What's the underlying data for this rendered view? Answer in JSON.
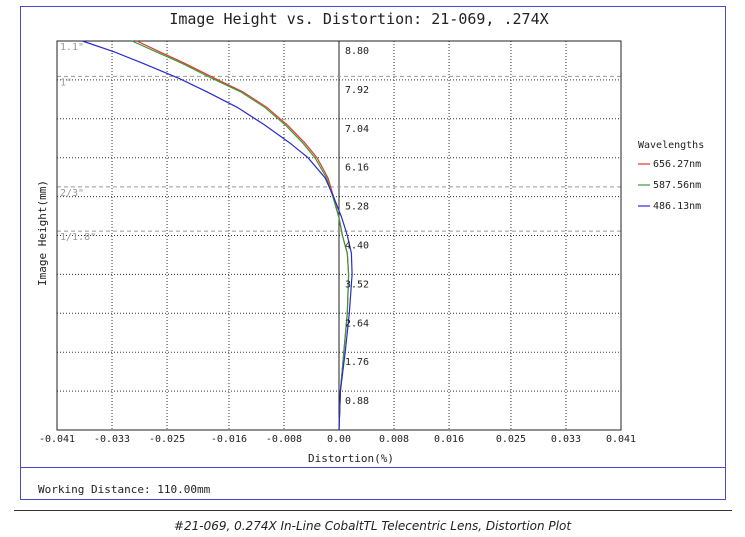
{
  "caption": "#21-069, 0.274X In-Line CobaltTL Telecentric Lens, Distortion Plot",
  "working_distance": "Working Distance: 110.00mm",
  "chart_data": {
    "type": "line",
    "title": "Image Height vs. Distortion: 21-069, .274X",
    "xlabel": "Distortion(%)",
    "ylabel": "Image Height(mm)",
    "xlim": [
      -0.041,
      0.041
    ],
    "ylim": [
      0,
      8.8
    ],
    "x_ticks": [
      "-0.041",
      "-0.033",
      "-0.025",
      "-0.016",
      "-0.008",
      "0.00",
      "0.008",
      "0.016",
      "0.025",
      "0.033",
      "0.041"
    ],
    "x_tick_values": [
      -0.041,
      -0.033,
      -0.025,
      -0.016,
      -0.008,
      0.0,
      0.008,
      0.016,
      0.025,
      0.033,
      0.041
    ],
    "y_ticks": [
      "0.88",
      "1.76",
      "2.64",
      "3.52",
      "4.40",
      "5.28",
      "6.16",
      "7.04",
      "7.92",
      "8.80"
    ],
    "y_tick_values": [
      0.88,
      1.76,
      2.64,
      3.52,
      4.4,
      5.28,
      6.16,
      7.04,
      7.92,
      8.8
    ],
    "grid": true,
    "legend_title": "Wavelengths",
    "legend_position": "right",
    "sensor_lines": [
      {
        "label": "1.1\"",
        "y": 8.8
      },
      {
        "label": "1\"",
        "y": 8.0
      },
      {
        "label": "2/3\"",
        "y": 5.5
      },
      {
        "label": "1/1.8\"",
        "y": 4.5
      }
    ],
    "series": [
      {
        "name": "656.27nm",
        "color": "#e03a2a",
        "x": [
          0.0,
          0.0002,
          0.0007,
          0.0012,
          0.0014,
          0.0012,
          0.0005,
          0.0,
          -0.0008,
          -0.0016,
          -0.0032,
          -0.005,
          -0.0075,
          -0.0105,
          -0.014,
          -0.018,
          -0.0225,
          -0.026,
          -0.0294
        ],
        "y": [
          0.0,
          0.88,
          1.76,
          2.64,
          3.52,
          4.0,
          4.4,
          4.8,
          5.28,
          5.7,
          6.16,
          6.5,
          6.9,
          7.3,
          7.65,
          7.95,
          8.3,
          8.55,
          8.8
        ]
      },
      {
        "name": "587.56nm",
        "color": "#3a9a3a",
        "x": [
          0.0,
          0.0002,
          0.0007,
          0.0012,
          0.0014,
          0.0012,
          0.0005,
          0.0,
          -0.0009,
          -0.0018,
          -0.0035,
          -0.0053,
          -0.0078,
          -0.0108,
          -0.0143,
          -0.0184,
          -0.0229,
          -0.0265,
          -0.0301
        ],
        "y": [
          0.0,
          0.88,
          1.76,
          2.64,
          3.52,
          4.0,
          4.4,
          4.8,
          5.28,
          5.7,
          6.16,
          6.5,
          6.9,
          7.3,
          7.65,
          7.95,
          8.3,
          8.55,
          8.8
        ]
      },
      {
        "name": "486.13nm",
        "color": "#2a2ad0",
        "x": [
          0.0,
          0.0002,
          0.0009,
          0.0015,
          0.0019,
          0.0018,
          0.0012,
          0.0004,
          -0.0008,
          -0.002,
          -0.0045,
          -0.0072,
          -0.0108,
          -0.0148,
          -0.0192,
          -0.0232,
          -0.0286,
          -0.0326,
          -0.0373
        ],
        "y": [
          0.0,
          0.88,
          1.76,
          2.64,
          3.52,
          4.0,
          4.4,
          4.8,
          5.28,
          5.7,
          6.16,
          6.5,
          6.9,
          7.3,
          7.65,
          7.95,
          8.3,
          8.55,
          8.8
        ]
      }
    ]
  }
}
